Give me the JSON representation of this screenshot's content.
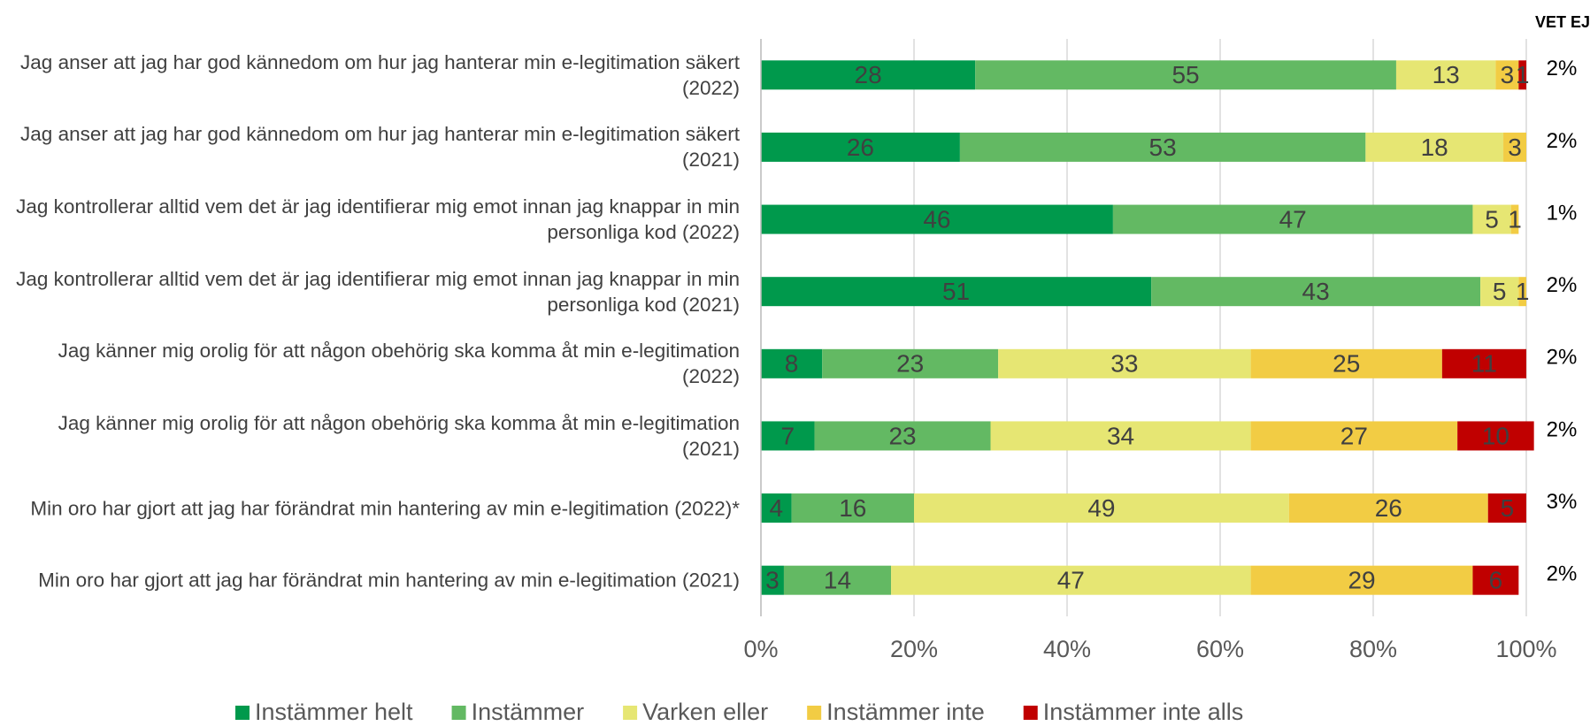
{
  "chart_data": {
    "type": "stacked-bar-horizontal",
    "categories": [
      "Jag anser att jag har god kännedom om hur jag hanterar min e-legitimation säkert (2022)",
      "Jag anser att jag har god kännedom om hur jag hanterar min e-legitimation säkert (2021)",
      "Jag kontrollerar alltid vem det är jag identifierar mig emot innan jag knappar in min personliga kod (2022)",
      "Jag kontrollerar alltid vem det är jag identifierar mig emot innan jag knappar in min personliga kod (2021)",
      "Jag känner mig orolig för att någon obehörig ska komma åt min e-legitimation (2022)",
      "Jag känner mig orolig för att någon obehörig ska komma åt min e-legitimation (2021)",
      "Min oro har gjort att jag har förändrat min hantering av min e-legitimation (2022)*",
      "Min oro har gjort att jag har förändrat min hantering av min e-legitimation (2021)"
    ],
    "series": [
      {
        "name": "Instämmer helt",
        "color": "#00994c",
        "values": [
          28,
          26,
          46,
          51,
          8,
          7,
          4,
          3
        ]
      },
      {
        "name": "Instämmer",
        "color": "#63b963",
        "values": [
          55,
          53,
          47,
          43,
          23,
          23,
          16,
          14
        ]
      },
      {
        "name": "Varken eller",
        "color": "#e6e673",
        "values": [
          13,
          18,
          5,
          5,
          33,
          34,
          49,
          47
        ]
      },
      {
        "name": "Instämmer inte",
        "color": "#f2cc44",
        "values": [
          3,
          3,
          1,
          1,
          25,
          27,
          26,
          29
        ]
      },
      {
        "name": "Instämmer inte alls",
        "color": "#c00000",
        "values": [
          1,
          null,
          null,
          null,
          11,
          10,
          5,
          6
        ]
      }
    ],
    "xlim": [
      0,
      100
    ],
    "xticks": [
      {
        "value": 0,
        "label": "0%"
      },
      {
        "value": 20,
        "label": "20%"
      },
      {
        "value": 40,
        "label": "40%"
      },
      {
        "value": 60,
        "label": "60%"
      },
      {
        "value": 80,
        "label": "80%"
      },
      {
        "value": 100,
        "label": "100%"
      }
    ],
    "grid": true,
    "legend": "bottom",
    "vet_ej": {
      "title": "VET EJ",
      "values": [
        2,
        2,
        1,
        2,
        2,
        2,
        3,
        2
      ],
      "value_labels": [
        "2%",
        "2%",
        "1%",
        "2%",
        "2%",
        "2%",
        "3%",
        "2%"
      ]
    }
  }
}
